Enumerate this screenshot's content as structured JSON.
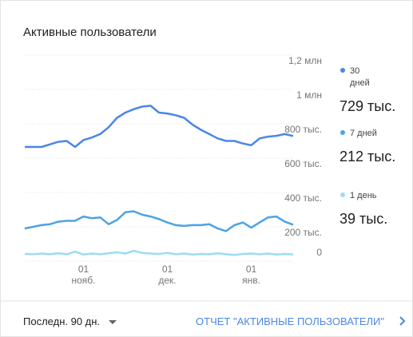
{
  "chart_data": {
    "type": "line",
    "title": "Активные пользователи",
    "categories": [
      null,
      null,
      null,
      null,
      null,
      null,
      null,
      "01 нояб.",
      null,
      null,
      null,
      null,
      null,
      null,
      null,
      null,
      null,
      "01 дек.",
      null,
      null,
      null,
      null,
      null,
      null,
      null,
      null,
      null,
      "01 янв.",
      null,
      null,
      null,
      null,
      null
    ],
    "series": [
      {
        "name": "30 дней",
        "color": "#4a86e8",
        "current": "729 тыс.",
        "values": [
          665000,
          665000,
          665000,
          680000,
          695000,
          700000,
          665000,
          705000,
          720000,
          740000,
          780000,
          835000,
          865000,
          885000,
          900000,
          905000,
          865000,
          860000,
          850000,
          835000,
          795000,
          765000,
          740000,
          715000,
          700000,
          700000,
          685000,
          675000,
          715000,
          725000,
          730000,
          740000,
          729000
        ]
      },
      {
        "name": "7 дней",
        "color": "#4ba3e3",
        "current": "212 тыс.",
        "values": [
          190000,
          200000,
          210000,
          215000,
          230000,
          235000,
          235000,
          260000,
          250000,
          255000,
          215000,
          240000,
          285000,
          290000,
          270000,
          260000,
          245000,
          225000,
          210000,
          205000,
          210000,
          210000,
          215000,
          190000,
          175000,
          210000,
          225000,
          195000,
          225000,
          255000,
          260000,
          230000,
          212000
        ]
      },
      {
        "name": "1 день",
        "color": "#9bdcf3",
        "current": "39 тыс.",
        "values": [
          42000,
          40000,
          44000,
          40000,
          46000,
          40000,
          55000,
          38000,
          44000,
          40000,
          46000,
          52000,
          44000,
          60000,
          48000,
          44000,
          42000,
          48000,
          40000,
          44000,
          38000,
          42000,
          40000,
          46000,
          40000,
          36000,
          42000,
          44000,
          40000,
          44000,
          38000,
          42000,
          39000
        ]
      }
    ],
    "ylim": [
      0,
      1200000
    ],
    "yticks": [
      0,
      {
        "value": 200000,
        "label": "200 тыс."
      },
      {
        "value": 400000,
        "label": "400 тыс."
      },
      {
        "value": 600000,
        "label": "600 тыс."
      },
      {
        "value": 800000,
        "label": "800 тыс."
      },
      {
        "value": 1000000,
        "label": "1 млн"
      },
      {
        "value": 1200000,
        "label": "1,2 млн"
      }
    ],
    "grid": true
  },
  "footer": {
    "range": "Последн. 90 дн.",
    "link": "ОТЧЕТ \"АКТИВНЫЕ ПОЛЬЗОВАТЕЛИ\""
  }
}
